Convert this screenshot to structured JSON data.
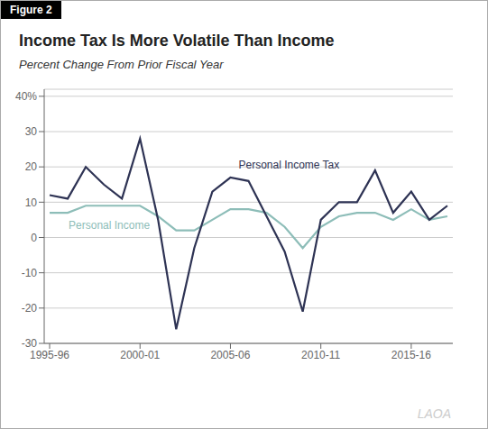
{
  "chart_data": {
    "type": "line",
    "figure_label": "Figure 2",
    "title": "Income Tax Is More Volatile Than Income",
    "subtitle": "Percent Change From Prior Fiscal Year",
    "watermark": "LAOA",
    "x": [
      0,
      1,
      2,
      3,
      4,
      5,
      6,
      7,
      8,
      9,
      10,
      11,
      12,
      13,
      14,
      15,
      16,
      17,
      18,
      19,
      20,
      21,
      22
    ],
    "series": [
      {
        "name": "Personal Income",
        "color": "#8dbdb8",
        "values": [
          7,
          7,
          9,
          9,
          9,
          9,
          6,
          2,
          2,
          5,
          8,
          8,
          7,
          3,
          -3,
          3,
          6,
          7,
          7,
          5,
          8,
          5,
          6
        ]
      },
      {
        "name": "Personal Income Tax",
        "color": "#2e3354",
        "values": [
          12,
          11,
          20,
          15,
          11,
          28,
          5,
          -26,
          -3,
          13,
          17,
          16,
          6,
          -4,
          -21,
          5,
          10,
          10,
          19,
          7,
          13,
          5,
          9
        ]
      }
    ],
    "annotations": [
      {
        "text": "Personal Income Tax",
        "x": 10.2,
        "y": 20.5
      },
      {
        "text": "Personal Income",
        "x": 0.8,
        "y": 3.5
      }
    ],
    "xlim": [
      -0.3,
      22.3
    ],
    "xticks": [
      {
        "value": 0,
        "label": "1995-96"
      },
      {
        "value": 5,
        "label": "2000-01"
      },
      {
        "value": 10,
        "label": "2005-06"
      },
      {
        "value": 15,
        "label": "2010-11"
      },
      {
        "value": 20,
        "label": "2015-16"
      }
    ],
    "ylim": [
      -30,
      42
    ],
    "yticks": [
      -30,
      -20,
      -10,
      0,
      10,
      20,
      30,
      {
        "value": 40,
        "label": "40%"
      }
    ],
    "grid": true
  }
}
